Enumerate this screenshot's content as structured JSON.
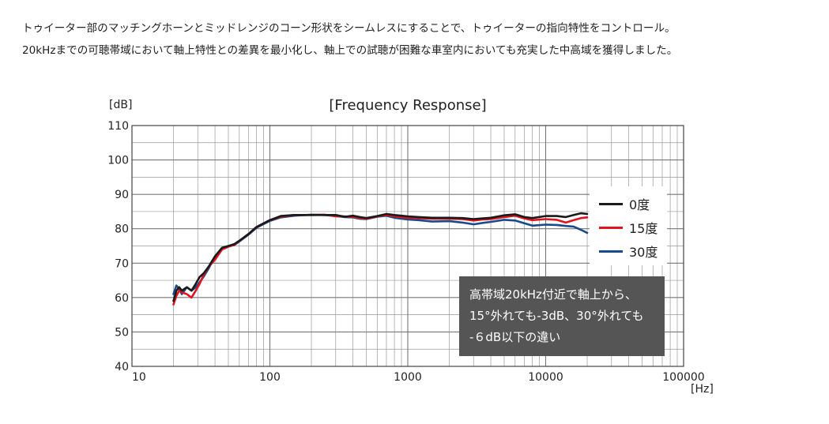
{
  "intro": {
    "line1": "トゥイーター部のマッチングホーンとミッドレンジのコーン形状をシームレスにすることで、トゥイーターの指向特性をコントロール。",
    "line2": "20kHzまでの可聴帯域において軸上特性との差異を最小化し、軸上での試聴が困難な車室内においても充実した中高域を獲得しました。"
  },
  "chart_data": {
    "type": "line",
    "title": "[Frequency Response]",
    "ylabel": "[dB]",
    "xlabel": "[Hz]",
    "xscale": "log",
    "xlim": [
      10,
      100000
    ],
    "ylim": [
      40,
      110
    ],
    "x_ticks": [
      "10",
      "100",
      "1000",
      "10000",
      "100000"
    ],
    "y_ticks": [
      "110",
      "100",
      "90",
      "80",
      "70",
      "60",
      "50",
      "40"
    ],
    "grid": true,
    "legend_position": "right",
    "series": [
      {
        "name": "0度",
        "color": "#1a1a1a",
        "points": [
          [
            20,
            59
          ],
          [
            21,
            62
          ],
          [
            22,
            63
          ],
          [
            23,
            62
          ],
          [
            25,
            63
          ],
          [
            27,
            62
          ],
          [
            29,
            64
          ],
          [
            31,
            66
          ],
          [
            33,
            67
          ],
          [
            36,
            69
          ],
          [
            40,
            72
          ],
          [
            45,
            74.5
          ],
          [
            50,
            75
          ],
          [
            55,
            75.5
          ],
          [
            60,
            76.5
          ],
          [
            70,
            78.5
          ],
          [
            80,
            80.5
          ],
          [
            100,
            82.5
          ],
          [
            120,
            83.7
          ],
          [
            150,
            84
          ],
          [
            200,
            84
          ],
          [
            250,
            84
          ],
          [
            300,
            84
          ],
          [
            350,
            83.5
          ],
          [
            400,
            83.8
          ],
          [
            450,
            83.4
          ],
          [
            500,
            83.1
          ],
          [
            600,
            83.7
          ],
          [
            700,
            84.3
          ],
          [
            800,
            84
          ],
          [
            1000,
            83.6
          ],
          [
            1200,
            83.4
          ],
          [
            1500,
            83.2
          ],
          [
            2000,
            83.2
          ],
          [
            2500,
            83.1
          ],
          [
            3000,
            82.8
          ],
          [
            3500,
            83
          ],
          [
            4000,
            83.2
          ],
          [
            5000,
            83.9
          ],
          [
            6000,
            84.2
          ],
          [
            7000,
            83.4
          ],
          [
            8000,
            83.1
          ],
          [
            10000,
            83.7
          ],
          [
            12000,
            83.7
          ],
          [
            14000,
            83.4
          ],
          [
            16000,
            84
          ],
          [
            18000,
            84.5
          ],
          [
            20000,
            84.3
          ]
        ]
      },
      {
        "name": "15度",
        "color": "#e0141e",
        "points": [
          [
            20,
            58
          ],
          [
            21,
            60.5
          ],
          [
            22,
            62
          ],
          [
            23,
            61.5
          ],
          [
            25,
            61
          ],
          [
            27,
            60
          ],
          [
            29,
            62
          ],
          [
            31,
            64
          ],
          [
            33,
            66.5
          ],
          [
            36,
            69
          ],
          [
            40,
            71
          ],
          [
            45,
            74
          ],
          [
            50,
            74.8
          ],
          [
            55,
            75.3
          ],
          [
            60,
            76.5
          ],
          [
            70,
            78.5
          ],
          [
            80,
            80.5
          ],
          [
            100,
            82.5
          ],
          [
            120,
            83.5
          ],
          [
            150,
            84
          ],
          [
            200,
            84
          ],
          [
            250,
            84.1
          ],
          [
            300,
            83.6
          ],
          [
            350,
            83.6
          ],
          [
            400,
            83.4
          ],
          [
            450,
            83.1
          ],
          [
            500,
            82.9
          ],
          [
            600,
            83.6
          ],
          [
            700,
            84
          ],
          [
            800,
            83.6
          ],
          [
            1000,
            83.2
          ],
          [
            1200,
            83.1
          ],
          [
            1500,
            82.9
          ],
          [
            2000,
            82.9
          ],
          [
            2500,
            82.8
          ],
          [
            3000,
            82.4
          ],
          [
            3500,
            82.7
          ],
          [
            4000,
            82.8
          ],
          [
            5000,
            83.4
          ],
          [
            6000,
            83.8
          ],
          [
            7000,
            83
          ],
          [
            8000,
            82.5
          ],
          [
            10000,
            82.8
          ],
          [
            12000,
            82.6
          ],
          [
            14000,
            81.8
          ],
          [
            16000,
            82.5
          ],
          [
            18000,
            83.1
          ],
          [
            20000,
            83.3
          ]
        ]
      },
      {
        "name": "30度",
        "color": "#184a8c",
        "points": [
          [
            20,
            61
          ],
          [
            21,
            63.5
          ],
          [
            22,
            62.5
          ],
          [
            23,
            61
          ],
          [
            25,
            63
          ],
          [
            27,
            62
          ],
          [
            29,
            63
          ],
          [
            31,
            64.5
          ],
          [
            33,
            66
          ],
          [
            36,
            68.5
          ],
          [
            40,
            72
          ],
          [
            45,
            74.3
          ],
          [
            50,
            75
          ],
          [
            55,
            75.2
          ],
          [
            60,
            76.3
          ],
          [
            70,
            78.3
          ],
          [
            80,
            80.3
          ],
          [
            100,
            82.3
          ],
          [
            120,
            83.3
          ],
          [
            150,
            83.8
          ],
          [
            200,
            84.1
          ],
          [
            250,
            84
          ],
          [
            300,
            83.7
          ],
          [
            350,
            83.4
          ],
          [
            400,
            83.3
          ],
          [
            450,
            82.9
          ],
          [
            500,
            82.8
          ],
          [
            600,
            83.5
          ],
          [
            700,
            83.8
          ],
          [
            800,
            83.2
          ],
          [
            1000,
            82.7
          ],
          [
            1200,
            82.5
          ],
          [
            1500,
            82.1
          ],
          [
            2000,
            82.2
          ],
          [
            2500,
            81.8
          ],
          [
            3000,
            81.3
          ],
          [
            3500,
            81.7
          ],
          [
            4000,
            82
          ],
          [
            5000,
            82.6
          ],
          [
            6000,
            82.4
          ],
          [
            7000,
            81.6
          ],
          [
            8000,
            80.9
          ],
          [
            10000,
            81.2
          ],
          [
            12000,
            81.1
          ],
          [
            14000,
            80.8
          ],
          [
            16000,
            80.6
          ],
          [
            18000,
            79.7
          ],
          [
            20000,
            78.8
          ]
        ]
      }
    ]
  },
  "annotation": {
    "line1": "高帯域20kHz付近で軸上から、",
    "line2": "15°外れても-3dB、30°外れても",
    "line3": "-６dB以下の違い"
  },
  "colors": {
    "grid": "#999999",
    "background": "#ffffff",
    "note_bg": "#555555"
  }
}
